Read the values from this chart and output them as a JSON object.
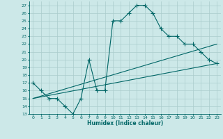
{
  "xlabel": "Humidex (Indice chaleur)",
  "ylabel": "",
  "bg_color": "#cce8e8",
  "line_color": "#006666",
  "grid_color": "#aacccc",
  "xlim": [
    -0.5,
    23.5
  ],
  "ylim": [
    13,
    27.5
  ],
  "xticks": [
    0,
    1,
    2,
    3,
    4,
    5,
    6,
    7,
    8,
    9,
    10,
    11,
    12,
    13,
    14,
    15,
    16,
    17,
    18,
    19,
    20,
    21,
    22,
    23
  ],
  "yticks": [
    13,
    14,
    15,
    16,
    17,
    18,
    19,
    20,
    21,
    22,
    23,
    24,
    25,
    26,
    27
  ],
  "series1_x": [
    0,
    1,
    2,
    3,
    4,
    5,
    6,
    7,
    8,
    9,
    10,
    11,
    12,
    13,
    14,
    15,
    16,
    17,
    18,
    19,
    20,
    21,
    22,
    23
  ],
  "series1_y": [
    17,
    16,
    15,
    15,
    14,
    13,
    15,
    20,
    16,
    16,
    25,
    25,
    26,
    27,
    27,
    26,
    24,
    23,
    23,
    22,
    22,
    21,
    20,
    19.5
  ],
  "series2_x": [
    0,
    23
  ],
  "series2_y": [
    15,
    19.5
  ],
  "series3_x": [
    0,
    23
  ],
  "series3_y": [
    15,
    22
  ],
  "marker": "+",
  "markersize": 4,
  "lw1": 0.8,
  "lw2": 0.8,
  "xlabel_fontsize": 5.5,
  "tick_fontsize": 4.5
}
